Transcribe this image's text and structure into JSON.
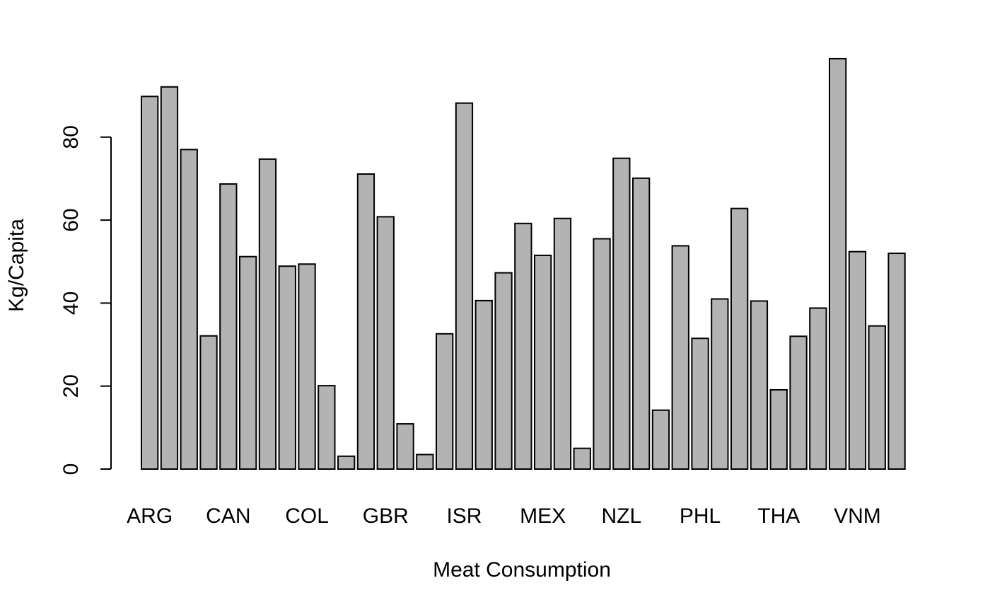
{
  "chart_data": {
    "type": "bar",
    "xlabel": "Meat Consumption",
    "ylabel": "Kg/Capita",
    "ylim": [
      0,
      100
    ],
    "yticks": [
      0,
      20,
      40,
      60,
      80
    ],
    "grid": false,
    "bar_color": "#b3b3b3",
    "edge_color": "#000000",
    "values": [
      89.8,
      92.1,
      77.0,
      32.1,
      68.7,
      51.2,
      74.7,
      48.9,
      49.4,
      20.1,
      3.1,
      71.1,
      60.8,
      10.9,
      3.5,
      32.6,
      88.2,
      40.6,
      47.3,
      59.2,
      51.5,
      60.4,
      5.0,
      55.5,
      74.9,
      70.1,
      14.2,
      53.8,
      31.5,
      41.0,
      62.8,
      40.5,
      19.1,
      32.0,
      38.8,
      98.9,
      52.4,
      34.5,
      52.0
    ],
    "category_labels": [
      {
        "index": 0,
        "label": "ARG"
      },
      {
        "index": 4,
        "label": "CAN"
      },
      {
        "index": 8,
        "label": "COL"
      },
      {
        "index": 12,
        "label": "GBR"
      },
      {
        "index": 16,
        "label": "ISR"
      },
      {
        "index": 20,
        "label": "MEX"
      },
      {
        "index": 24,
        "label": "NZL"
      },
      {
        "index": 28,
        "label": "PHL"
      },
      {
        "index": 32,
        "label": "THA"
      },
      {
        "index": 36,
        "label": "VNM"
      }
    ]
  }
}
